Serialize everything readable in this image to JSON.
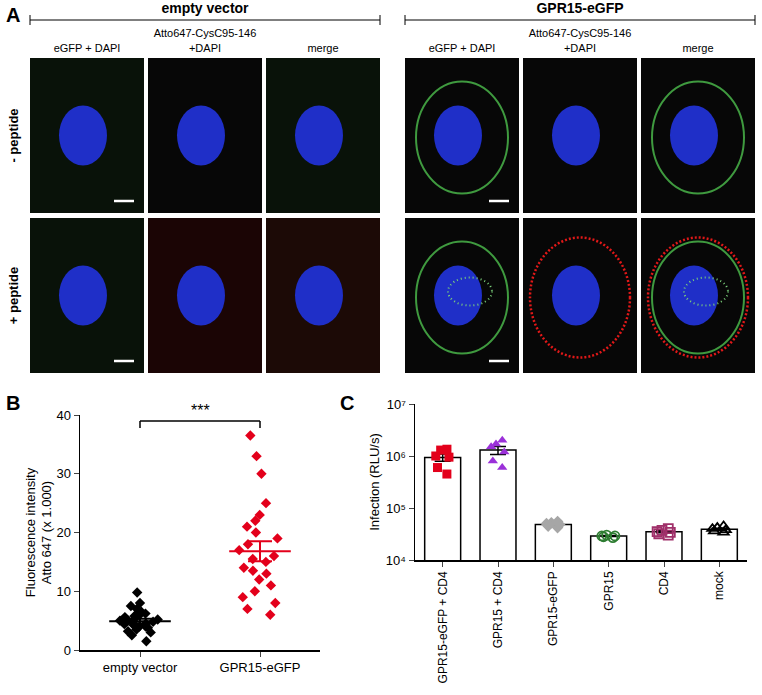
{
  "panel_labels": [
    "A",
    "B",
    "C"
  ],
  "panel_a": {
    "groups": [
      "empty vector",
      "GPR15-eGFP"
    ],
    "stain_label": "Atto647-CysC95-146",
    "columns": [
      "eGFP + DAPI",
      "+DAPI",
      "merge"
    ],
    "rows": [
      "- peptide",
      "+ peptide"
    ]
  },
  "chart_data": [
    {
      "type": "scatter",
      "y_label": [
        "Fluorescence intensity",
        "Atto 647 (x 1.000)"
      ],
      "categories": [
        "empty vector",
        "GPR15-eGFP"
      ],
      "values": [
        [
          1.5,
          2.5,
          3,
          3.2,
          3.5,
          3.8,
          4,
          4,
          4.2,
          4.4,
          4.5,
          4.7,
          4.8,
          5,
          5,
          5.2,
          5.4,
          5.6,
          5.8,
          6,
          6.2,
          6.5,
          7,
          7.5,
          8,
          9.8
        ],
        [
          6,
          7,
          8,
          9,
          10,
          11,
          12,
          13,
          13.5,
          14,
          15,
          15.5,
          16,
          17,
          18,
          19,
          20,
          21,
          22,
          23,
          25,
          30,
          33,
          36.5
        ]
      ],
      "mean": [
        4.9,
        16.8
      ],
      "sem": [
        0.4,
        1.7
      ],
      "colors": [
        "#000000",
        "#e3001b"
      ],
      "marker": "diamond",
      "ylim": [
        0,
        40
      ],
      "yticks": [
        0,
        10,
        20,
        30,
        40
      ],
      "grid": false,
      "annotations": [
        {
          "text": "***",
          "between": [
            "empty vector",
            "GPR15-eGFP"
          ]
        }
      ]
    },
    {
      "type": "bar",
      "y_label": "Infection (RLU/s)",
      "categories": [
        "GPR15-eGFP + CD4",
        "GPR15 + CD4",
        "GPR15-eGFP",
        "GPR15",
        "CD4",
        "mock"
      ],
      "values": [
        940000,
        1300000,
        48000,
        29000,
        35000,
        39000
      ],
      "sem": [
        150000,
        230000,
        2000,
        600,
        1500,
        1700
      ],
      "points": [
        [
          1350000,
          1300000,
          1000000,
          950000,
          600000,
          450000
        ],
        [
          2000000,
          1700000,
          1500000,
          1200000,
          800000,
          600000
        ],
        [
          55000,
          52000,
          50000,
          48000,
          45000,
          42000
        ],
        [
          30000,
          29000,
          28000,
          29000,
          27000
        ],
        [
          40000,
          37000,
          35000,
          34000,
          32000,
          30000
        ],
        [
          45000,
          42000,
          40000,
          38000,
          36000,
          34000
        ]
      ],
      "colors": [
        "#e3001b",
        "#9b30d9",
        "#a6a6a6",
        "#2e7d32",
        "#a0306a",
        "#000000"
      ],
      "marker": [
        "square",
        "triangle-up",
        "diamond",
        "circle-open",
        "square-open",
        "triangle-up-open"
      ],
      "log": "y",
      "ylim": [
        10000,
        10000000
      ],
      "yticks": [
        {
          "value": 10000,
          "label": "10⁴"
        },
        {
          "value": 100000,
          "label": "10⁵"
        },
        {
          "value": 1000000,
          "label": "10⁶"
        },
        {
          "value": 10000000,
          "label": "10⁷"
        }
      ],
      "grid": false
    }
  ]
}
